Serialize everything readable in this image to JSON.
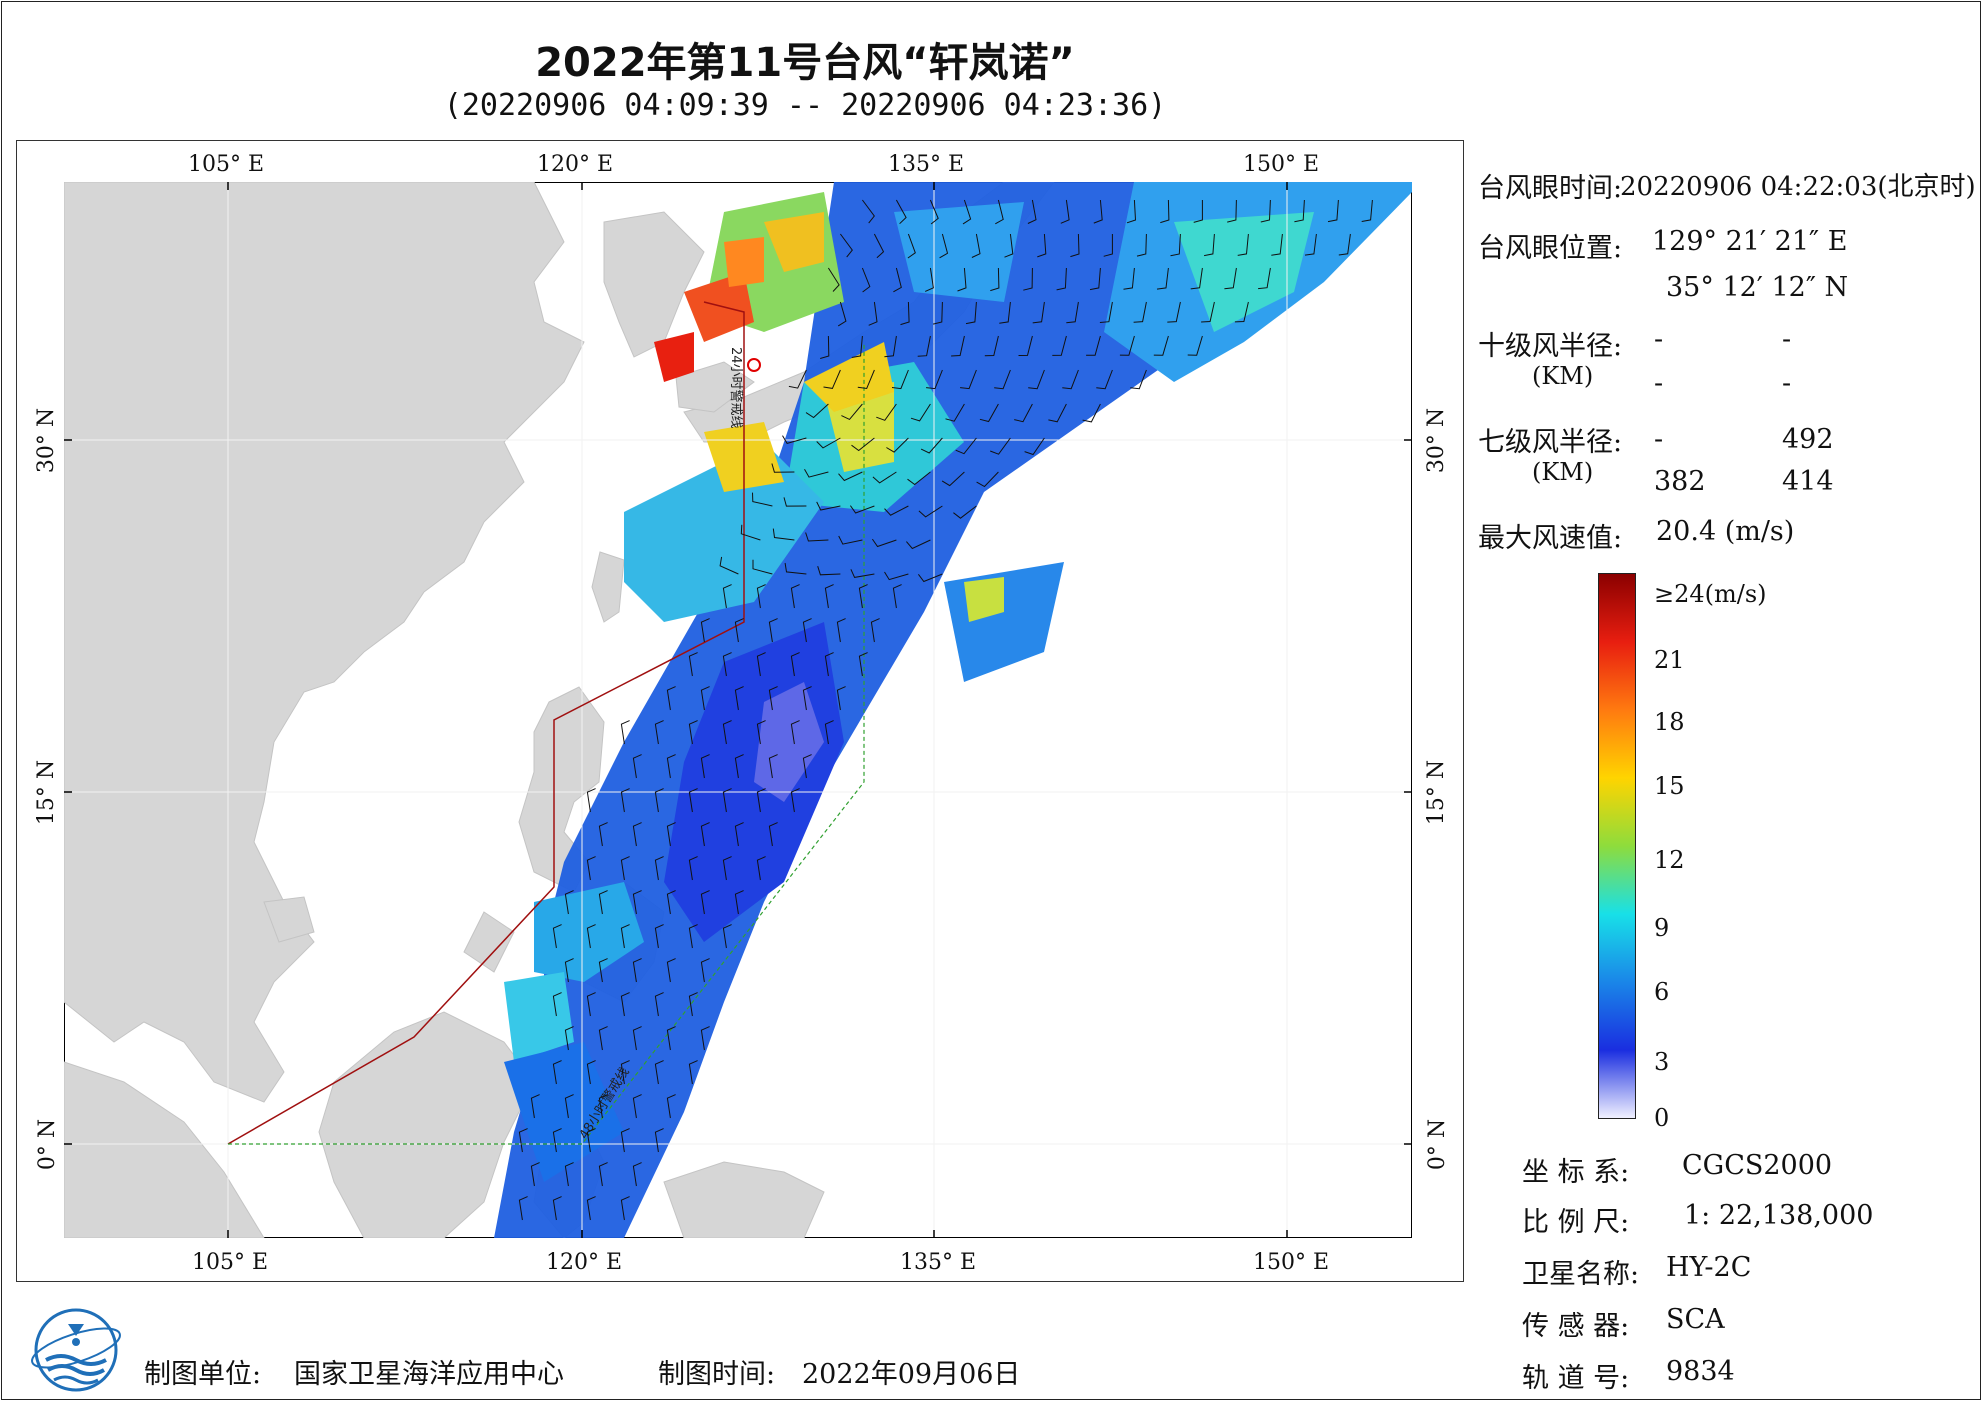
{
  "title": "2022年第11号台风“轩岚诺”",
  "subtitle": "(20220906 04:09:39 -- 20220906 04:23:36)",
  "map": {
    "lon_ticks": [
      "105° E",
      "120° E",
      "135° E",
      "150° E"
    ],
    "lat_ticks": [
      "30° N",
      "15° N",
      "0° N"
    ],
    "boundary_labels": [
      "24小时警戒线",
      "48小时警戒线"
    ]
  },
  "info": {
    "eye_time_label": "台风眼时间:",
    "eye_time_value": "20220906 04:22:03(北京时)",
    "eye_pos_label": "台风眼位置:",
    "eye_lon": "129° 21′ 21″ E",
    "eye_lat": "35° 12′ 12″ N",
    "r10_label": "十级风半径:",
    "r10_unit": "(KM)",
    "r10_values": [
      "-",
      "-",
      "-",
      "-"
    ],
    "r7_label": "七级风半径:",
    "r7_unit": "(KM)",
    "r7_values": [
      "-",
      "492",
      "382",
      "414"
    ],
    "max_label": "最大风速值:",
    "max_value": "20.4  (m/s)"
  },
  "colorbar": {
    "labels": [
      "≥24(m/s)",
      "21",
      "18",
      "15",
      "12",
      "9",
      "6",
      "3",
      "0"
    ],
    "colors": [
      "#8b0000",
      "#e81e10",
      "#ff7a10",
      "#ffd400",
      "#8edc3c",
      "#18e0e8",
      "#1a86e8",
      "#1a2ee0",
      "#f0f0ff"
    ]
  },
  "meta": {
    "coord_label": "坐 标 系:",
    "coord_value": "CGCS2000",
    "scale_label": "比 例 尺:",
    "scale_value": "1: 22,138,000",
    "sat_label": "卫星名称:",
    "sat_value": "HY-2C",
    "sensor_label": "传 感 器:",
    "sensor_value": "SCA",
    "orbit_label": "轨 道 号:",
    "orbit_value": "9834"
  },
  "footer": {
    "unit_label": "制图单位:",
    "unit_value": "国家卫星海洋应用中心",
    "time_label": "制图时间:",
    "time_value": "2022年09月06日"
  }
}
